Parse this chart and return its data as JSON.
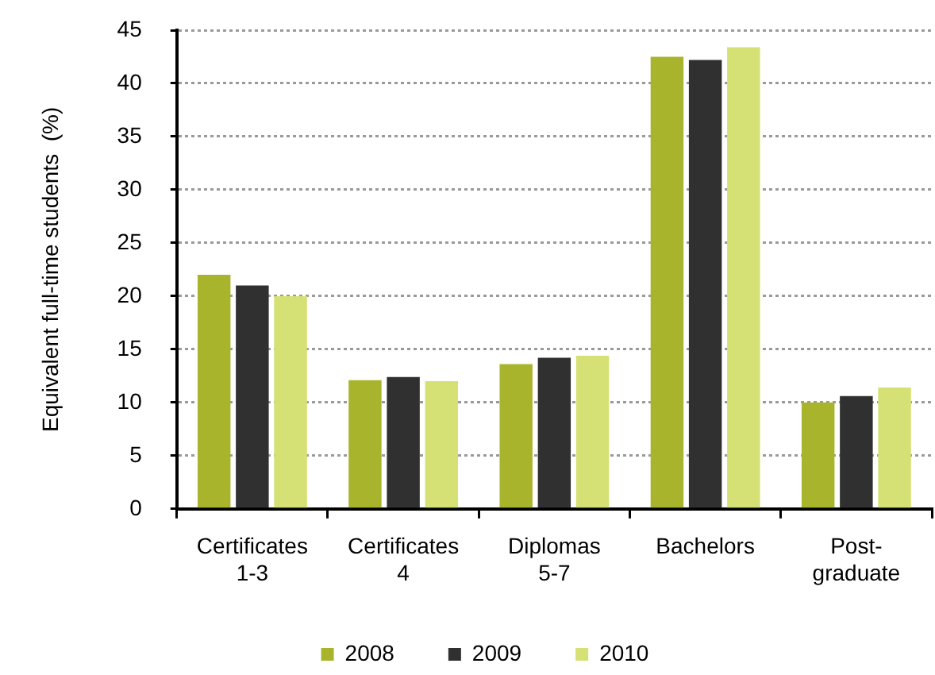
{
  "chart_data": {
    "type": "bar",
    "ylabel": "Equivalent full-time students  (%)",
    "categories": [
      "Certificates 1-3",
      "Certificates 4",
      "Diplomas 5-7",
      "Bachelors",
      "Post-graduate"
    ],
    "series": [
      {
        "name": "2008",
        "color": "#a8b42b",
        "values": [
          22.0,
          12.1,
          13.6,
          42.5,
          10.0
        ]
      },
      {
        "name": "2009",
        "color": "#303030",
        "values": [
          21.0,
          12.4,
          14.2,
          42.2,
          10.6
        ]
      },
      {
        "name": "2010",
        "color": "#d5e174",
        "values": [
          20.0,
          12.0,
          14.4,
          43.4,
          11.4
        ]
      }
    ],
    "ylim": [
      0,
      45
    ],
    "yticks": [
      0,
      5,
      10,
      15,
      20,
      25,
      30,
      35,
      40,
      45
    ],
    "grid": "y",
    "legend": "bottom"
  }
}
